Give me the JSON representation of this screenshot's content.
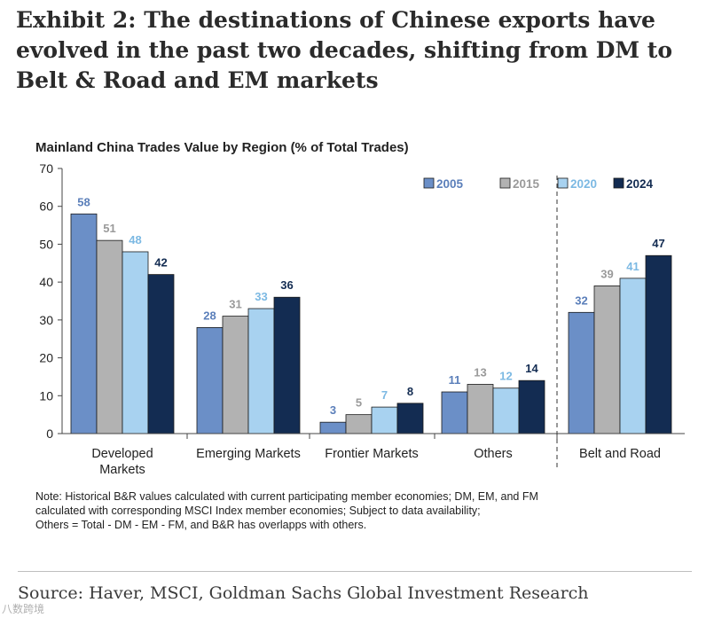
{
  "header": {
    "exhibit_title": "Exhibit 2: The destinations of Chinese exports have evolved in the past two decades, shifting from DM to Belt & Road and EM markets"
  },
  "chart_data": {
    "type": "bar",
    "title": "Mainland China Trades Value by Region (% of Total Trades)",
    "xlabel": "",
    "ylabel": "",
    "ylim": [
      0,
      70
    ],
    "yticks": [
      0,
      10,
      20,
      30,
      40,
      50,
      60,
      70
    ],
    "categories": [
      "Developed Markets",
      "Emerging Markets",
      "Frontier Markets",
      "Others",
      "Belt and Road"
    ],
    "series": [
      {
        "name": "2005",
        "color": "#6b8fc7",
        "label_color": "#5b7fba",
        "values": [
          58,
          28,
          3,
          11,
          32
        ]
      },
      {
        "name": "2015",
        "color": "#b2b2b2",
        "label_color": "#9a9a9a",
        "values": [
          51,
          31,
          5,
          13,
          39
        ]
      },
      {
        "name": "2020",
        "color": "#a8d2f0",
        "label_color": "#7cb9e3",
        "values": [
          48,
          33,
          7,
          12,
          41
        ]
      },
      {
        "name": "2024",
        "color": "#132c52",
        "label_color": "#132c52",
        "values": [
          42,
          36,
          8,
          14,
          47
        ]
      }
    ],
    "grid": false,
    "legend_position": "top-right",
    "separator": "dashed line before Belt and Road"
  },
  "notes": {
    "line1": "Note: Historical B&R values calculated with current participating member economies; DM, EM, and FM",
    "line2": "calculated with corresponding MSCI Index member economies; Subject to data availability;",
    "line3": "Others = Total - DM - EM - FM, and B&R has overlapps with others."
  },
  "footer": {
    "source": "Source: Haver, MSCI, Goldman Sachs Global Investment Research",
    "watermark": "八数跨境"
  }
}
